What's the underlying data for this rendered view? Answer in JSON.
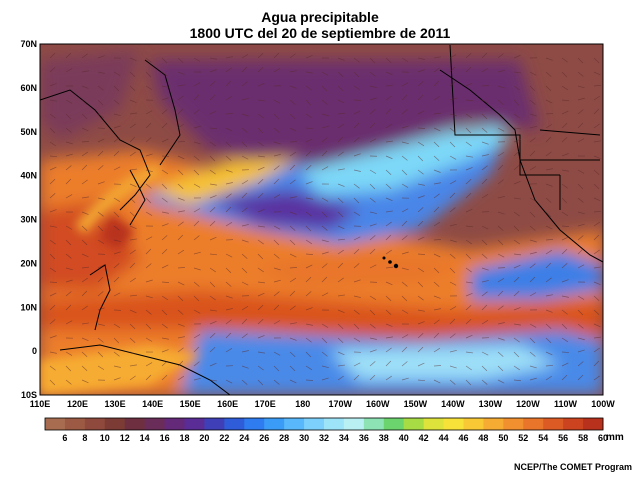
{
  "title": "Agua precipitable",
  "subtitle": "1800 UTC del 20 de septiembre de 2011",
  "lat_labels": [
    "70N",
    "60N",
    "50N",
    "40N",
    "30N",
    "20N",
    "10N",
    "0",
    "10S"
  ],
  "lon_labels": [
    "110E",
    "120E",
    "130E",
    "140E",
    "150E",
    "160E",
    "170E",
    "180",
    "170W",
    "160W",
    "150W",
    "140W",
    "130W",
    "120W",
    "110W",
    "100W"
  ],
  "colorbar": {
    "ticks": [
      "6",
      "8",
      "10",
      "12",
      "14",
      "16",
      "18",
      "20",
      "22",
      "24",
      "26",
      "28",
      "30",
      "32",
      "34",
      "36",
      "38",
      "40",
      "42",
      "44",
      "46",
      "48",
      "50",
      "52",
      "54",
      "56",
      "58",
      "60"
    ],
    "unit": "mm",
    "colors": [
      "#a86d50",
      "#9c5a44",
      "#8f4a3d",
      "#7d3b35",
      "#6e3040",
      "#6a2d5a",
      "#65297a",
      "#5a2d96",
      "#3f40b8",
      "#2f5cd8",
      "#2f7cf0",
      "#3b9cf7",
      "#58b8fb",
      "#7dd0fb",
      "#9ee4f9",
      "#b8f0f3",
      "#8de3b3",
      "#6cd46d",
      "#a8dc45",
      "#dde33a",
      "#f7e23a",
      "#f8c934",
      "#f6ac33",
      "#f1902f",
      "#e8752a",
      "#dc5b24",
      "#cc441f",
      "#b8311c"
    ]
  },
  "credit": "NCEP/The COMET Program"
}
